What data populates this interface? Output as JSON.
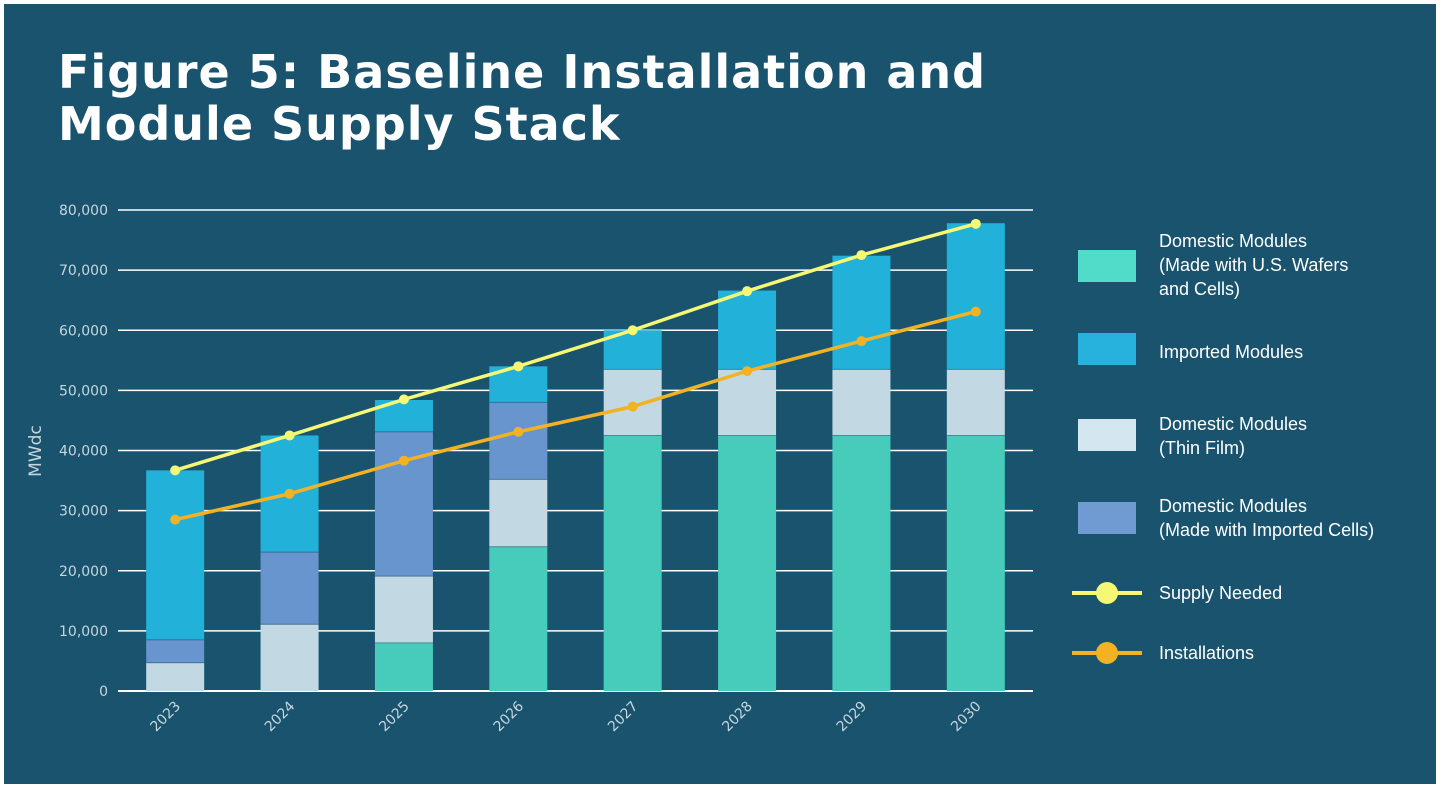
{
  "title_line1": "Figure 5: Baseline Installation and",
  "title_line2": "Module Supply Stack",
  "chart_data": {
    "type": "bar",
    "stacked": true,
    "categories": [
      "2023",
      "2024",
      "2025",
      "2026",
      "2027",
      "2028",
      "2029",
      "2030"
    ],
    "ylabel": "MWdc",
    "ylim": [
      0,
      80000
    ],
    "yticks": [
      0,
      10000,
      20000,
      30000,
      40000,
      50000,
      60000,
      70000,
      80000
    ],
    "ytick_labels": [
      "0",
      "10,000",
      "20,000",
      "30,000",
      "40,000",
      "50,000",
      "60,000",
      "70,000",
      "80,000"
    ],
    "grid": true,
    "legend_position": "right",
    "series": [
      {
        "name": "Domestic Modules (Made with U.S. Wafers and Cells)",
        "legend_lines": [
          "Domestic Modules",
          "(Made with U.S. Wafers",
          "and Cells)"
        ],
        "kind": "bar",
        "color": "#47ccbb",
        "legend_color": "#50dcc8",
        "values": [
          0,
          0,
          8000,
          24000,
          42500,
          42500,
          42500,
          42500
        ]
      },
      {
        "name": "Domestic Modules (Thin Film)",
        "legend_lines": [
          "Domestic Modules",
          "(Thin Film)"
        ],
        "kind": "bar",
        "color": "#c2d9e3",
        "legend_color": "#d4e7f1",
        "values": [
          4700,
          11100,
          11100,
          11200,
          11000,
          11000,
          11000,
          11000
        ]
      },
      {
        "name": "Domestic Modules (Made with Imported Cells)",
        "legend_lines": [
          "Domestic Modules",
          "(Made with Imported Cells)"
        ],
        "kind": "bar",
        "color": "#6895cd",
        "legend_color": "#6f9ad2",
        "values": [
          3800,
          12000,
          24000,
          12800,
          0,
          0,
          0,
          0
        ]
      },
      {
        "name": "Imported Modules",
        "legend_lines": [
          "Imported Modules"
        ],
        "kind": "bar",
        "color": "#22b1d9",
        "legend_color": "#26b2dc",
        "values": [
          28200,
          19400,
          5300,
          6000,
          6500,
          13100,
          18900,
          24300
        ]
      },
      {
        "name": "Supply Needed",
        "legend_lines": [
          "Supply Needed"
        ],
        "kind": "line",
        "color": "#f5f775",
        "values": [
          36700,
          42500,
          48500,
          54000,
          60000,
          66500,
          72500,
          77700
        ]
      },
      {
        "name": "Installations",
        "legend_lines": [
          "Installations"
        ],
        "kind": "line",
        "color": "#f2b224",
        "values": [
          28500,
          32800,
          38300,
          43100,
          47300,
          53200,
          58200,
          63100
        ]
      }
    ],
    "legend_order": [
      0,
      3,
      1,
      2,
      4,
      5
    ]
  }
}
